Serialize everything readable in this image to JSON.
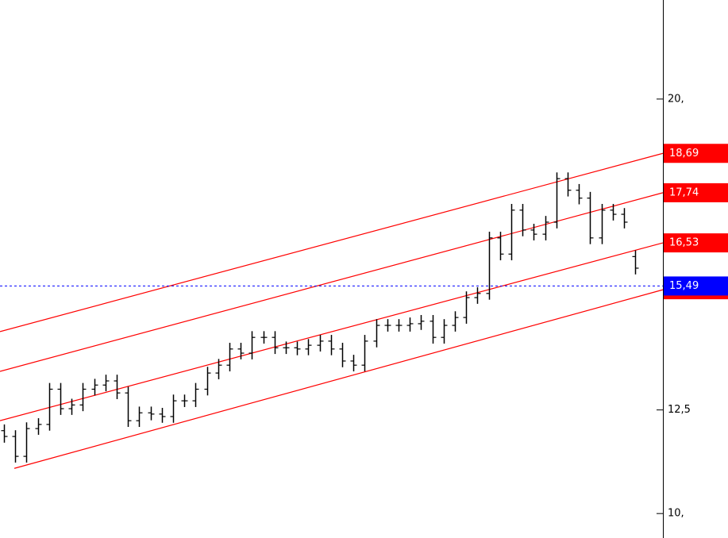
{
  "chart_data": {
    "type": "ohlc",
    "color": "#000000",
    "open": [
      12.0,
      11.86,
      11.38,
      12.05,
      12.15,
      13.0,
      12.53,
      12.62,
      13.0,
      13.1,
      13.2,
      12.91,
      12.24,
      12.43,
      12.4,
      12.34,
      12.72,
      12.72,
      13.0,
      13.39,
      13.58,
      13.97,
      13.87,
      14.25,
      14.25,
      14.0,
      14.0,
      13.97,
      14.06,
      14.16,
      13.97,
      13.68,
      13.58,
      14.16,
      14.54,
      14.54,
      14.54,
      14.58,
      14.64,
      14.25,
      14.54,
      14.73,
      15.21,
      15.31,
      16.65,
      16.26,
      17.32,
      16.84,
      16.74,
      17.03,
      18.08,
      17.8,
      17.61,
      16.65,
      17.32,
      17.22,
      16.2
    ],
    "high": [
      12.15,
      12.01,
      12.2,
      12.3,
      13.15,
      13.15,
      12.77,
      13.15,
      13.25,
      13.35,
      13.35,
      13.06,
      12.58,
      12.58,
      12.55,
      12.87,
      12.87,
      13.15,
      13.54,
      13.73,
      14.12,
      14.12,
      14.4,
      14.4,
      14.4,
      14.15,
      14.15,
      14.21,
      14.31,
      14.31,
      14.12,
      13.83,
      14.31,
      14.69,
      14.69,
      14.69,
      14.73,
      14.79,
      14.79,
      14.69,
      14.88,
      15.36,
      15.46,
      16.8,
      16.8,
      17.47,
      17.47,
      16.99,
      17.18,
      18.23,
      18.23,
      17.95,
      17.76,
      17.47,
      17.47,
      17.37,
      16.35
    ],
    "low": [
      11.71,
      11.23,
      11.23,
      11.9,
      12.0,
      12.38,
      12.38,
      12.47,
      12.85,
      12.95,
      12.76,
      12.09,
      12.09,
      12.25,
      12.19,
      12.19,
      12.57,
      12.57,
      12.85,
      13.24,
      13.43,
      13.72,
      13.72,
      14.1,
      13.85,
      13.85,
      13.82,
      13.82,
      13.91,
      13.82,
      13.53,
      13.43,
      13.43,
      14.01,
      14.39,
      14.39,
      14.39,
      14.43,
      14.1,
      14.1,
      14.39,
      14.58,
      15.06,
      15.16,
      16.11,
      16.11,
      16.69,
      16.59,
      16.59,
      16.88,
      17.65,
      17.46,
      16.5,
      16.5,
      17.07,
      16.88,
      15.77
    ],
    "close": [
      11.86,
      11.38,
      12.05,
      12.15,
      13.0,
      12.53,
      12.62,
      13.0,
      13.1,
      13.2,
      12.91,
      12.24,
      12.43,
      12.4,
      12.34,
      12.72,
      12.72,
      13.0,
      13.39,
      13.58,
      13.97,
      13.87,
      14.25,
      14.25,
      14.0,
      14.0,
      13.97,
      14.06,
      14.16,
      13.97,
      13.68,
      13.58,
      14.16,
      14.54,
      14.54,
      14.54,
      14.58,
      14.64,
      14.25,
      14.54,
      14.73,
      15.21,
      15.31,
      16.65,
      16.26,
      17.32,
      16.84,
      16.74,
      17.03,
      18.08,
      17.8,
      17.61,
      16.65,
      17.32,
      17.22,
      17.03,
      15.92
    ],
    "xlim": [
      -0.35,
      58.45
    ],
    "ylim": [
      9.41,
      22.39
    ],
    "yticks": [
      {
        "value": 20,
        "label": "20,"
      },
      {
        "value": 12.5,
        "label": "12,5"
      },
      {
        "value": 10,
        "label": "10,"
      }
    ],
    "channel_color": "#ff0000",
    "channels": [
      {
        "x": [
          -0.35,
          58.45
        ],
        "values": [
          14.39,
          18.69
        ],
        "label": "18,69"
      },
      {
        "x": [
          -0.35,
          58.45
        ],
        "values": [
          13.43,
          17.74
        ],
        "label": "17,74"
      },
      {
        "x": [
          -0.35,
          58.45
        ],
        "values": [
          12.24,
          16.53
        ],
        "label": "16,53"
      },
      {
        "x": [
          0.92,
          58.45
        ],
        "values": [
          11.09,
          15.4
        ]
      }
    ],
    "hline": {
      "value": 15.49,
      "label": "15,49",
      "color": "#0000ff"
    }
  }
}
